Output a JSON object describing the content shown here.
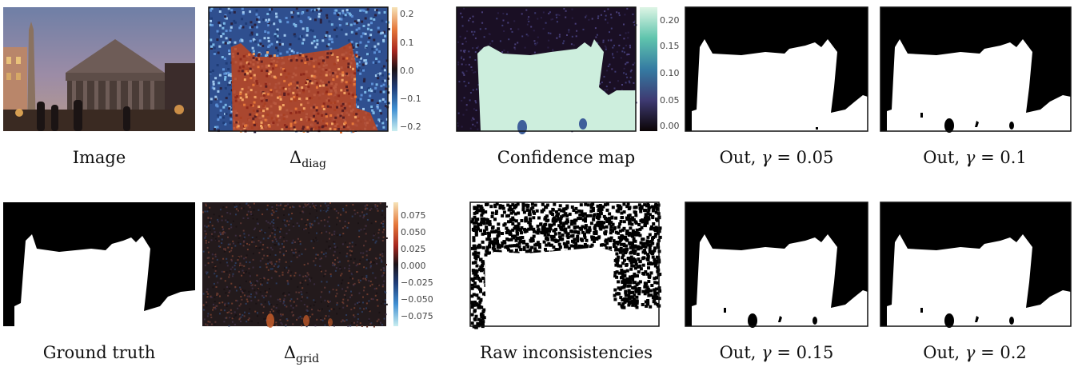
{
  "figure": {
    "row1": {
      "image_caption": "Image",
      "delta_diag": {
        "symbol": "Δ",
        "subscript": "diag",
        "colorbar_ticks": [
          "0.2",
          "0.1",
          "0.0",
          "−0.1",
          "−0.2"
        ]
      },
      "confidence_map": {
        "caption": "Confidence map",
        "colorbar_ticks": [
          "0.20",
          "0.15",
          "0.10",
          "0.05",
          "0.00"
        ]
      },
      "out_005": {
        "prefix": "Out,",
        "gamma": "γ",
        "value": "= 0.05"
      },
      "out_01": {
        "prefix": "Out,",
        "gamma": "γ",
        "value": "= 0.1"
      }
    },
    "row2": {
      "ground_truth_caption": "Ground truth",
      "delta_grid": {
        "symbol": "Δ",
        "subscript": "grid",
        "colorbar_ticks": [
          "0.075",
          "0.050",
          "0.025",
          "0.000",
          "−0.025",
          "−0.050",
          "−0.075"
        ]
      },
      "raw_inconsistencies_caption": "Raw inconsistencies",
      "out_015": {
        "prefix": "Out,",
        "gamma": "γ",
        "value": "= 0.15"
      },
      "out_02": {
        "prefix": "Out,",
        "gamma": "γ",
        "value": "= 0.2"
      }
    },
    "colors": {
      "mask_white": "#ffffff",
      "mask_black": "#000000",
      "diag_warm": "#c8401c",
      "diag_cool": "#3a6fc4",
      "grid_dark": "#231a1c",
      "confidence_low": "#1a0f24",
      "confidence_high": "#cdeedd",
      "confidence_mid": "#3f5f9a"
    }
  }
}
